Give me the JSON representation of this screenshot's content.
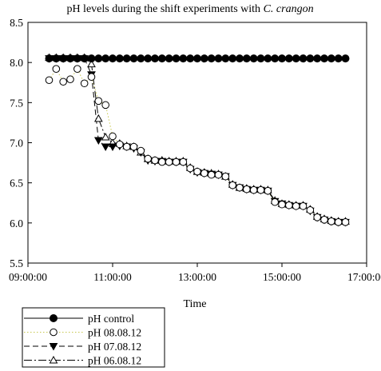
{
  "chart_data": {
    "type": "line",
    "title": "pH levels during the shift experiments with",
    "title_species": "C. crangon",
    "xlabel": "Time",
    "ylabel": "",
    "xlim": [
      "09:00:00",
      "17:00:00"
    ],
    "ylim": [
      5.5,
      8.5
    ],
    "x_ticks": [
      "09:00:00",
      "11:00:00",
      "13:00:00",
      "15:00:00",
      "17:00:00"
    ],
    "y_ticks": [
      "5.5",
      "6.0",
      "6.5",
      "7.0",
      "7.5",
      "8.0",
      "8.5"
    ],
    "grid": false,
    "legend_position": "bottom-left",
    "series": [
      {
        "name": "pH control",
        "marker": "filled-circle",
        "line": "solid",
        "color": "#000000",
        "points": [
          [
            "09:30:00",
            8.05
          ],
          [
            "09:40:00",
            8.05
          ],
          [
            "09:50:00",
            8.05
          ],
          [
            "10:00:00",
            8.05
          ],
          [
            "10:10:00",
            8.05
          ],
          [
            "10:20:00",
            8.05
          ],
          [
            "10:30:00",
            8.05
          ],
          [
            "10:40:00",
            8.05
          ],
          [
            "10:50:00",
            8.05
          ],
          [
            "11:00:00",
            8.05
          ],
          [
            "11:10:00",
            8.05
          ],
          [
            "11:20:00",
            8.05
          ],
          [
            "11:30:00",
            8.05
          ],
          [
            "11:40:00",
            8.05
          ],
          [
            "11:50:00",
            8.05
          ],
          [
            "12:00:00",
            8.05
          ],
          [
            "12:10:00",
            8.05
          ],
          [
            "12:20:00",
            8.05
          ],
          [
            "12:30:00",
            8.05
          ],
          [
            "12:40:00",
            8.05
          ],
          [
            "12:50:00",
            8.05
          ],
          [
            "13:00:00",
            8.05
          ],
          [
            "13:10:00",
            8.05
          ],
          [
            "13:20:00",
            8.05
          ],
          [
            "13:30:00",
            8.05
          ],
          [
            "13:40:00",
            8.05
          ],
          [
            "13:50:00",
            8.05
          ],
          [
            "14:00:00",
            8.05
          ],
          [
            "14:10:00",
            8.05
          ],
          [
            "14:20:00",
            8.05
          ],
          [
            "14:30:00",
            8.05
          ],
          [
            "14:40:00",
            8.05
          ],
          [
            "14:50:00",
            8.05
          ],
          [
            "15:00:00",
            8.05
          ],
          [
            "15:10:00",
            8.05
          ],
          [
            "15:20:00",
            8.05
          ],
          [
            "15:30:00",
            8.05
          ],
          [
            "15:40:00",
            8.05
          ],
          [
            "15:50:00",
            8.05
          ],
          [
            "16:00:00",
            8.05
          ],
          [
            "16:10:00",
            8.05
          ],
          [
            "16:20:00",
            8.05
          ],
          [
            "16:30:00",
            8.05
          ]
        ]
      },
      {
        "name": "pH 08.08.12",
        "marker": "open-circle",
        "line": "dotted",
        "color": "#c8c850",
        "points": [
          [
            "09:30:00",
            7.78
          ],
          [
            "09:40:00",
            7.92
          ],
          [
            "09:50:00",
            7.76
          ],
          [
            "10:00:00",
            7.79
          ],
          [
            "10:10:00",
            7.92
          ],
          [
            "10:20:00",
            7.74
          ],
          [
            "10:30:00",
            7.82
          ],
          [
            "10:40:00",
            7.52
          ],
          [
            "10:50:00",
            7.47
          ],
          [
            "11:00:00",
            7.08
          ],
          [
            "11:10:00",
            6.98
          ],
          [
            "11:20:00",
            6.95
          ],
          [
            "11:30:00",
            6.95
          ],
          [
            "11:40:00",
            6.9
          ],
          [
            "11:50:00",
            6.8
          ],
          [
            "12:00:00",
            6.78
          ],
          [
            "12:10:00",
            6.76
          ],
          [
            "12:20:00",
            6.76
          ],
          [
            "12:30:00",
            6.76
          ],
          [
            "12:40:00",
            6.76
          ],
          [
            "12:50:00",
            6.68
          ],
          [
            "13:00:00",
            6.64
          ],
          [
            "13:10:00",
            6.62
          ],
          [
            "13:20:00",
            6.6
          ],
          [
            "13:30:00",
            6.6
          ],
          [
            "13:40:00",
            6.58
          ],
          [
            "13:50:00",
            6.47
          ],
          [
            "14:00:00",
            6.44
          ],
          [
            "14:10:00",
            6.42
          ],
          [
            "14:20:00",
            6.41
          ],
          [
            "14:30:00",
            6.41
          ],
          [
            "14:40:00",
            6.4
          ],
          [
            "14:50:00",
            6.26
          ],
          [
            "15:00:00",
            6.23
          ],
          [
            "15:10:00",
            6.22
          ],
          [
            "15:20:00",
            6.21
          ],
          [
            "15:30:00",
            6.21
          ],
          [
            "15:40:00",
            6.16
          ],
          [
            "15:50:00",
            6.07
          ],
          [
            "16:00:00",
            6.04
          ],
          [
            "16:10:00",
            6.02
          ],
          [
            "16:20:00",
            6.01
          ],
          [
            "16:30:00",
            6.01
          ]
        ]
      },
      {
        "name": "pH 07.08.12",
        "marker": "filled-triangle-down",
        "line": "dashed",
        "color": "#000000",
        "points": [
          [
            "09:30:00",
            8.05
          ],
          [
            "09:40:00",
            8.05
          ],
          [
            "09:50:00",
            8.05
          ],
          [
            "10:00:00",
            8.05
          ],
          [
            "10:10:00",
            8.05
          ],
          [
            "10:20:00",
            8.05
          ],
          [
            "10:30:00",
            7.85
          ],
          [
            "10:40:00",
            7.03
          ],
          [
            "10:50:00",
            6.95
          ],
          [
            "11:00:00",
            6.95
          ],
          [
            "11:10:00",
            6.96
          ],
          [
            "11:20:00",
            6.95
          ],
          [
            "11:30:00",
            6.93
          ],
          [
            "11:40:00",
            6.88
          ],
          [
            "11:50:00",
            6.78
          ],
          [
            "12:00:00",
            6.77
          ],
          [
            "12:10:00",
            6.77
          ],
          [
            "12:20:00",
            6.76
          ],
          [
            "12:30:00",
            6.76
          ],
          [
            "12:40:00",
            6.76
          ],
          [
            "12:50:00",
            6.67
          ],
          [
            "13:00:00",
            6.63
          ],
          [
            "13:10:00",
            6.62
          ],
          [
            "13:20:00",
            6.61
          ],
          [
            "13:30:00",
            6.6
          ],
          [
            "13:40:00",
            6.58
          ],
          [
            "13:50:00",
            6.47
          ],
          [
            "14:00:00",
            6.44
          ],
          [
            "14:10:00",
            6.42
          ],
          [
            "14:20:00",
            6.41
          ],
          [
            "14:30:00",
            6.41
          ],
          [
            "14:40:00",
            6.4
          ],
          [
            "14:50:00",
            6.27
          ],
          [
            "15:00:00",
            6.24
          ],
          [
            "15:10:00",
            6.22
          ],
          [
            "15:20:00",
            6.21
          ],
          [
            "15:30:00",
            6.21
          ],
          [
            "15:40:00",
            6.15
          ],
          [
            "15:50:00",
            6.07
          ],
          [
            "16:00:00",
            6.04
          ],
          [
            "16:10:00",
            6.02
          ],
          [
            "16:20:00",
            6.01
          ],
          [
            "16:30:00",
            6.01
          ]
        ]
      },
      {
        "name": "pH 06.08.12",
        "marker": "open-triangle-up",
        "line": "dash-dot",
        "color": "#000000",
        "points": [
          [
            "09:30:00",
            8.06
          ],
          [
            "09:40:00",
            8.06
          ],
          [
            "09:50:00",
            8.06
          ],
          [
            "10:00:00",
            8.06
          ],
          [
            "10:10:00",
            8.06
          ],
          [
            "10:20:00",
            8.06
          ],
          [
            "10:30:00",
            7.98
          ],
          [
            "10:40:00",
            7.3
          ],
          [
            "10:50:00",
            7.07
          ],
          [
            "11:00:00",
            7.0
          ],
          [
            "11:10:00",
            6.99
          ],
          [
            "11:20:00",
            6.96
          ],
          [
            "11:30:00",
            6.95
          ],
          [
            "11:40:00",
            6.88
          ],
          [
            "11:50:00",
            6.8
          ],
          [
            "12:00:00",
            6.78
          ],
          [
            "12:10:00",
            6.78
          ],
          [
            "12:20:00",
            6.77
          ],
          [
            "12:30:00",
            6.77
          ],
          [
            "12:40:00",
            6.77
          ],
          [
            "12:50:00",
            6.69
          ],
          [
            "13:00:00",
            6.64
          ],
          [
            "13:10:00",
            6.63
          ],
          [
            "13:20:00",
            6.62
          ],
          [
            "13:30:00",
            6.61
          ],
          [
            "13:40:00",
            6.58
          ],
          [
            "13:50:00",
            6.48
          ],
          [
            "14:00:00",
            6.44
          ],
          [
            "14:10:00",
            6.43
          ],
          [
            "14:20:00",
            6.42
          ],
          [
            "14:30:00",
            6.42
          ],
          [
            "14:40:00",
            6.41
          ],
          [
            "14:50:00",
            6.28
          ],
          [
            "15:00:00",
            6.24
          ],
          [
            "15:10:00",
            6.23
          ],
          [
            "15:20:00",
            6.22
          ],
          [
            "15:30:00",
            6.22
          ],
          [
            "15:40:00",
            6.17
          ],
          [
            "15:50:00",
            6.08
          ],
          [
            "16:00:00",
            6.05
          ],
          [
            "16:10:00",
            6.03
          ],
          [
            "16:20:00",
            6.02
          ],
          [
            "16:30:00",
            6.02
          ]
        ]
      }
    ]
  }
}
